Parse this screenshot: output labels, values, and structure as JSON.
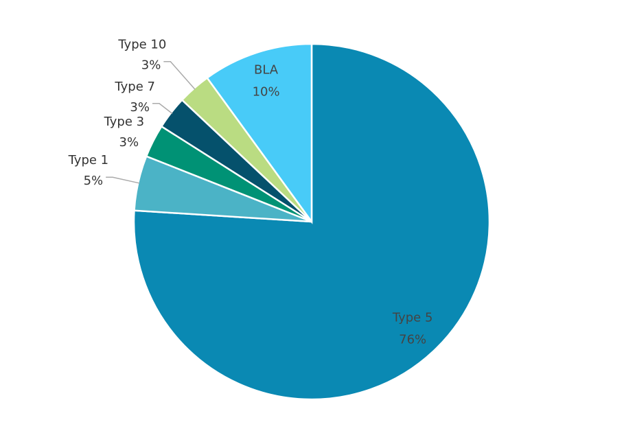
{
  "chart_data": {
    "type": "pie",
    "categories": [
      "Type 5",
      "Type 1",
      "Type 3",
      "Type 7",
      "Type 10",
      "BLA"
    ],
    "values": [
      76,
      5,
      3,
      3,
      3,
      10
    ],
    "value_labels": [
      "76%",
      "5%",
      "3%",
      "3%",
      "3%",
      "10%"
    ],
    "colors": [
      "#0a89b3",
      "#4bb3c6",
      "#009275",
      "#05516c",
      "#badc82",
      "#48cbf8"
    ]
  }
}
